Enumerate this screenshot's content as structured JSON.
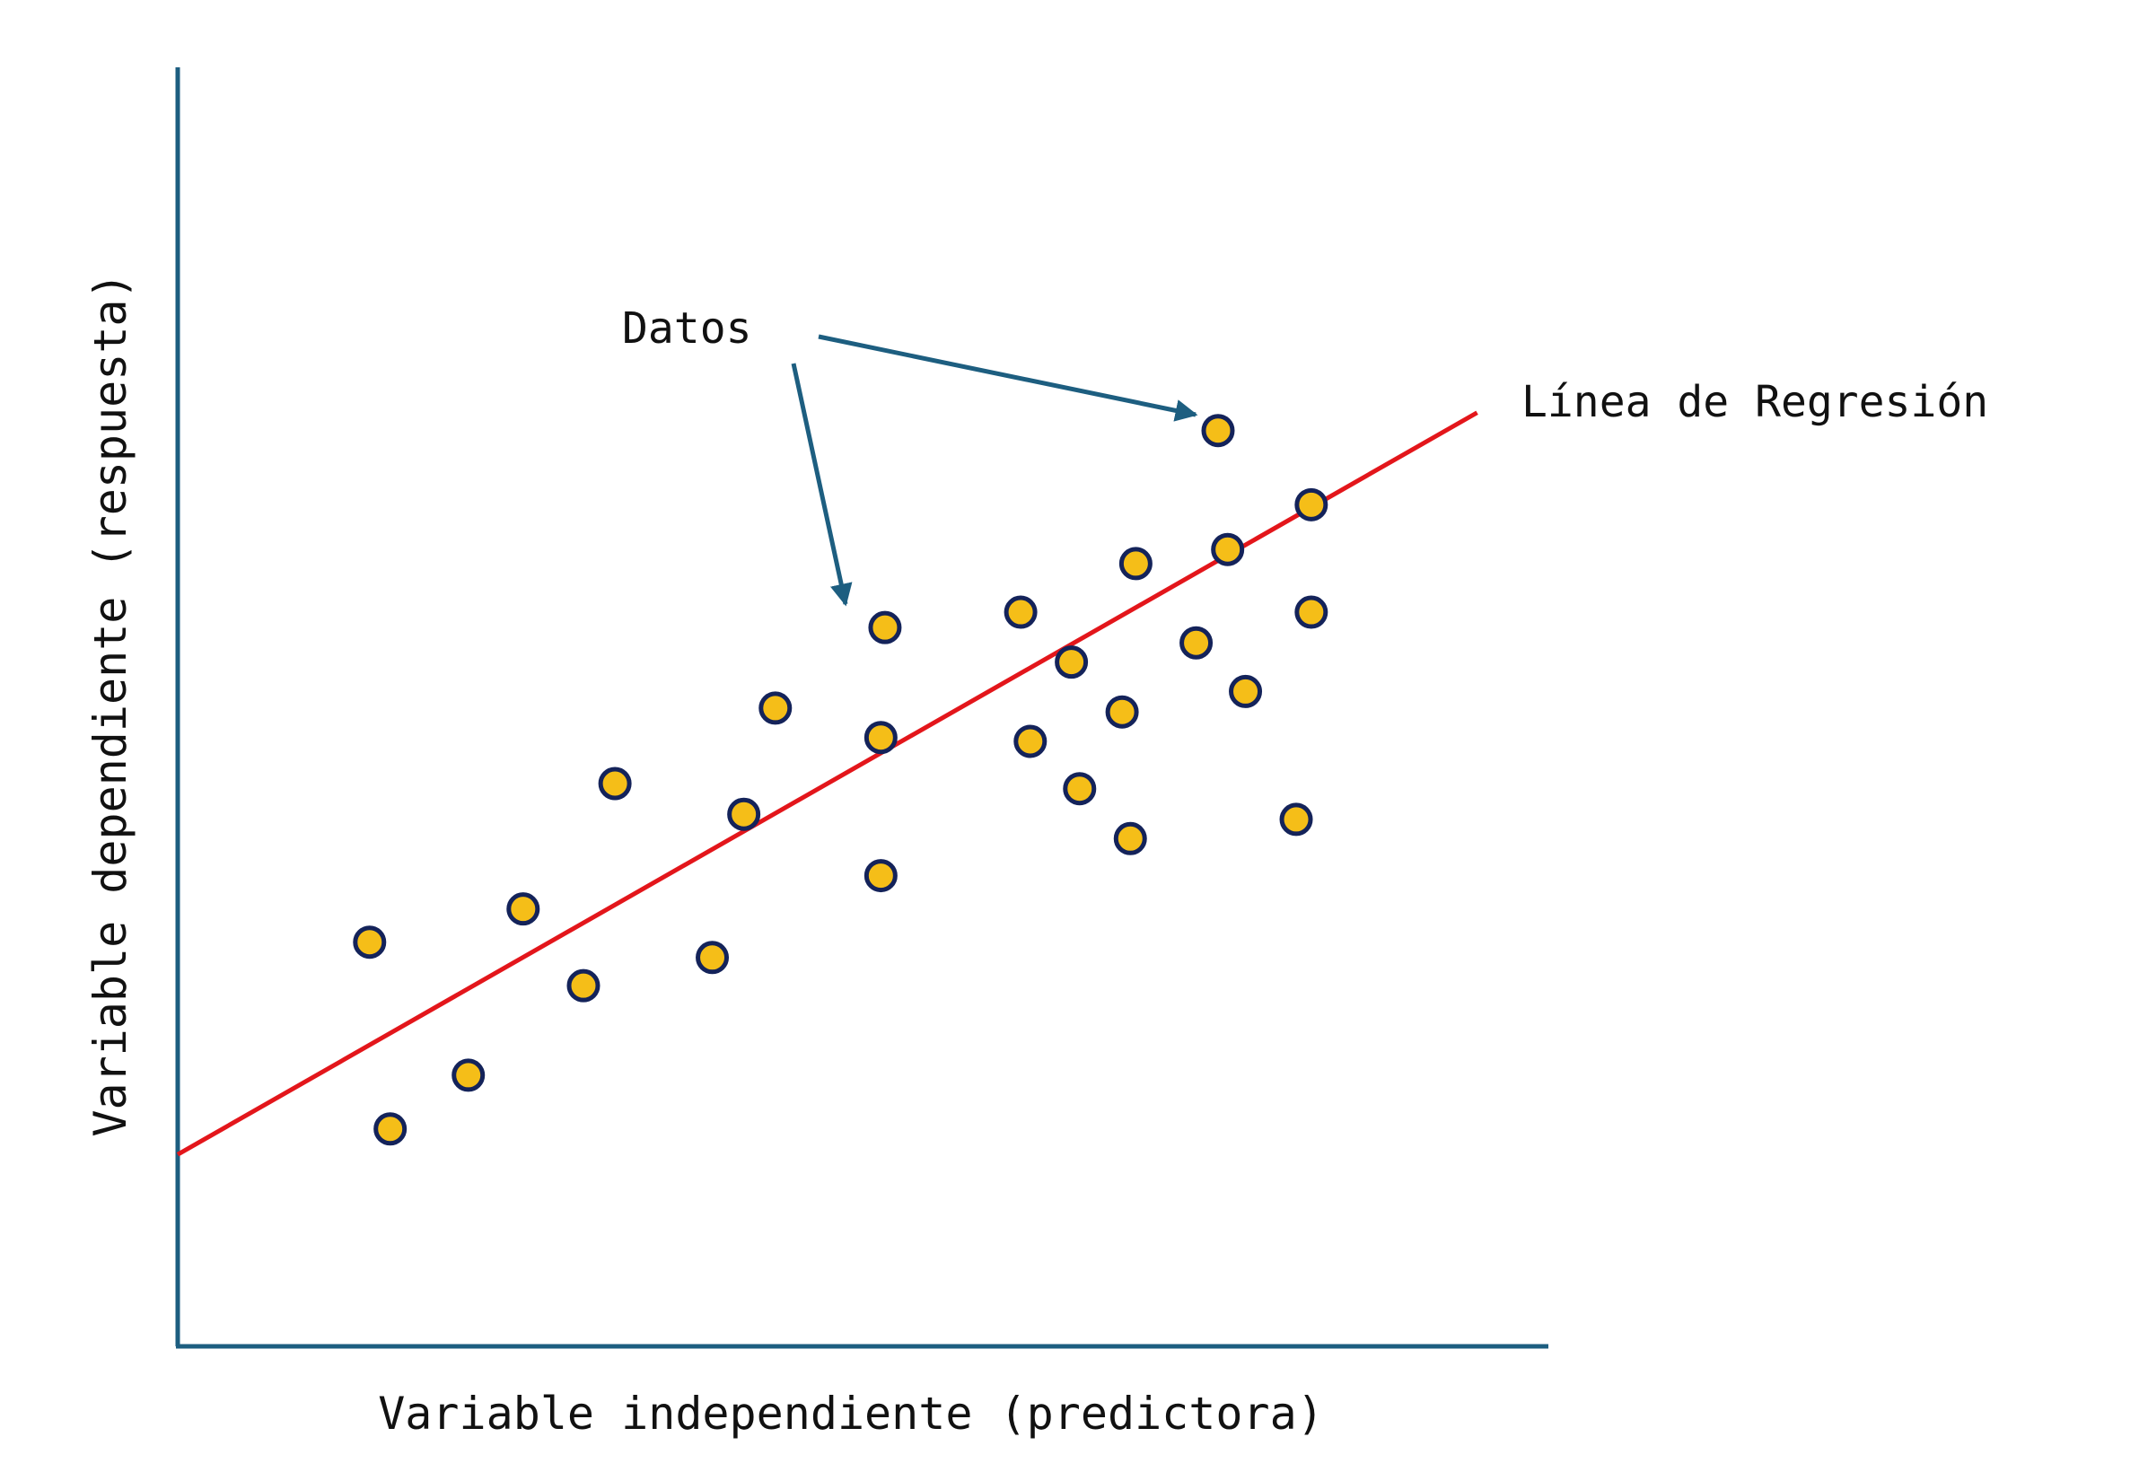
{
  "chart_data": {
    "type": "scatter",
    "title": "",
    "xlabel": "Variable independiente (predictora)",
    "ylabel": "Variable dependiente (respuesta)",
    "annotations": {
      "data_label": "Datos",
      "line_label": "Línea de Regresión"
    },
    "grid": false,
    "xlim": [
      0,
      100
    ],
    "ylim": [
      0,
      100
    ],
    "points": [
      {
        "x": 14.0,
        "y": 31.6
      },
      {
        "x": 15.5,
        "y": 17.0
      },
      {
        "x": 21.2,
        "y": 21.2
      },
      {
        "x": 25.2,
        "y": 34.2
      },
      {
        "x": 29.6,
        "y": 28.2
      },
      {
        "x": 31.9,
        "y": 44.0
      },
      {
        "x": 39.0,
        "y": 30.4
      },
      {
        "x": 41.3,
        "y": 41.6
      },
      {
        "x": 43.6,
        "y": 49.9
      },
      {
        "x": 51.3,
        "y": 36.8
      },
      {
        "x": 51.3,
        "y": 47.6
      },
      {
        "x": 51.6,
        "y": 56.2
      },
      {
        "x": 61.5,
        "y": 57.4
      },
      {
        "x": 62.2,
        "y": 47.3
      },
      {
        "x": 65.2,
        "y": 53.5
      },
      {
        "x": 65.8,
        "y": 43.6
      },
      {
        "x": 68.9,
        "y": 49.6
      },
      {
        "x": 69.5,
        "y": 39.7
      },
      {
        "x": 69.9,
        "y": 61.2
      },
      {
        "x": 74.3,
        "y": 55.0
      },
      {
        "x": 75.9,
        "y": 71.6
      },
      {
        "x": 76.6,
        "y": 62.3
      },
      {
        "x": 77.9,
        "y": 51.2
      },
      {
        "x": 81.6,
        "y": 41.2
      },
      {
        "x": 82.7,
        "y": 65.8
      },
      {
        "x": 82.7,
        "y": 57.4
      }
    ],
    "regression_line": {
      "x": [
        0,
        94.8
      ],
      "y": [
        15.0,
        73.0
      ]
    },
    "colors": {
      "point_fill": "#F5BE18",
      "point_stroke": "#14235A",
      "axis": "#1D5E80",
      "arrow": "#1D5E80",
      "line": "#E3161B"
    }
  }
}
